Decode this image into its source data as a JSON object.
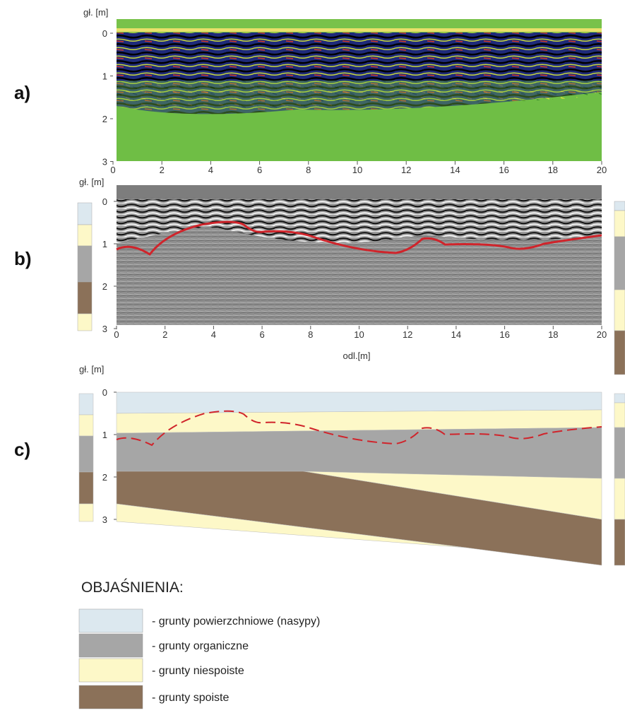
{
  "panels": [
    {
      "label": "a)",
      "y_axis_label": "gł. [m]",
      "y_ticks": [
        0,
        1,
        2,
        3
      ],
      "x_ticks": [
        0,
        2,
        4,
        6,
        8,
        10,
        12,
        14,
        16,
        18,
        20
      ]
    },
    {
      "label": "b)",
      "y_axis_label": "gł. [m]",
      "y_ticks": [
        0,
        1,
        2,
        3
      ],
      "x_ticks": [
        0,
        2,
        4,
        6,
        8,
        10,
        12,
        14,
        16,
        18,
        20
      ],
      "x_axis_label": "odl.[m]"
    },
    {
      "label": "c)",
      "y_axis_label": "gł. [m]",
      "y_ticks": [
        0,
        1,
        2,
        3
      ]
    }
  ],
  "legend": {
    "title": "OBJAŚNIENIA:",
    "items": [
      {
        "color": "#dce8ef",
        "text": "- grunty powierzchniowe (nasypy)"
      },
      {
        "color": "#a6a6a6",
        "text": "- grunty organiczne"
      },
      {
        "color": "#fdf8c8",
        "text": "- grunty niespoiste"
      },
      {
        "color": "#8b7159",
        "text": "- grunty spoiste"
      }
    ]
  }
}
